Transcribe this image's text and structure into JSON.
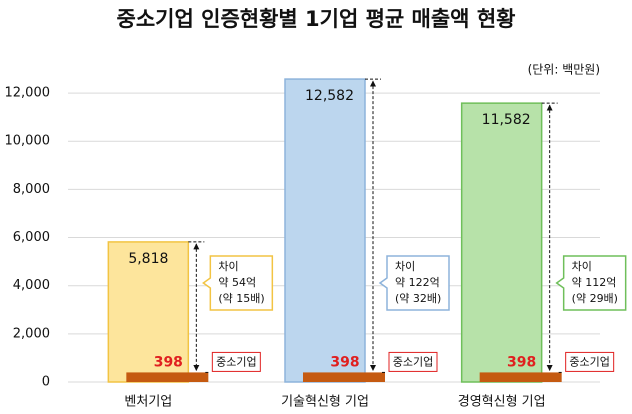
{
  "chart_data": {
    "type": "bar",
    "title": "중소기업 인증현황별 1기업 평균 매출액 현황",
    "unit": "(단위: 백만원)",
    "categories": [
      "벤처기업",
      "기술혁신형 기업",
      "경영혁신형 기업"
    ],
    "series": [
      {
        "values": [
          5818,
          12582,
          11582
        ],
        "value_labels": [
          "5,818",
          "12,582",
          "11,582"
        ],
        "colors": [
          "#fde59c",
          "#bcd6ee",
          "#b7e2a9"
        ]
      },
      {
        "name": "중소기업",
        "values": [
          398,
          398,
          398
        ],
        "color": "#c55a11"
      }
    ],
    "annotations": [
      [
        "차이",
        "약 54억",
        "(약 15배)"
      ],
      [
        "차이",
        "약 122억",
        "(약 32배)"
      ],
      [
        "차이",
        "약 112억",
        "(약 29배)"
      ]
    ],
    "ylim": [
      0,
      13000
    ],
    "yticks": [
      0,
      {
        "value": 2000,
        "label": "2,000"
      },
      {
        "value": 4000,
        "label": "4,000"
      },
      {
        "value": 6000,
        "label": "6,000"
      },
      {
        "value": 8000,
        "label": "8,000"
      },
      {
        "value": 10000,
        "label": "10,000"
      },
      {
        "value": 12000,
        "label": "12,000"
      }
    ],
    "grid": true
  }
}
